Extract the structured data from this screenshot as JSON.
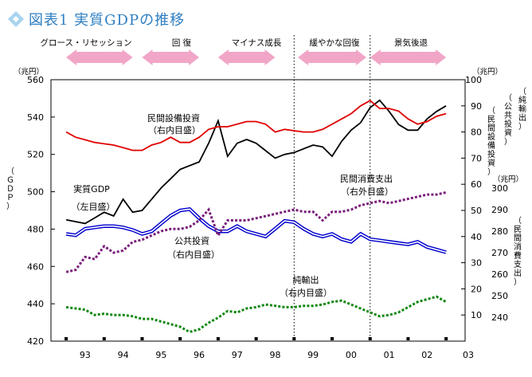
{
  "title": "図表1 実質GDPの推移",
  "phases": [
    {
      "label": "グロース・リセッション"
    },
    {
      "label": "回 復"
    },
    {
      "label": "マイナス成長"
    },
    {
      "label": "緩やかな回復"
    },
    {
      "label": "景気後退"
    }
  ],
  "axes": {
    "left_unit": "（兆円）",
    "left_title": "（ＧＤＰ）",
    "right_unit": "（兆円）",
    "right_title_1": "（民間設備投資）",
    "right_title_2": "（公共投資）",
    "right_title_3": "（純輸出）",
    "inner_unit": "（兆円）",
    "inner_title": "（民間消費支出）"
  },
  "annotations": {
    "gdp_1": "実質GDP",
    "gdp_2": "（左目盛）",
    "capex_1": "民間設備投資",
    "capex_2": "（右内目盛）",
    "consumption_1": "民間消費支出",
    "consumption_2": "（右外目盛）",
    "public_1": "公共投資",
    "public_2": "（右内目盛）",
    "netexports_1": "純輸出",
    "netexports_2": "（右内目盛）"
  },
  "colors": {
    "gdp": "#000000",
    "capex": "#e00000",
    "public": "#0000cc",
    "consumption": "#7b1e7b",
    "netexports": "#118811",
    "phase_arrow": "#f1a6c8",
    "title": "#2f7fc1"
  },
  "chart_data": {
    "type": "line",
    "x_ticks": [
      "93",
      "94",
      "95",
      "96",
      "97",
      "98",
      "99",
      "00",
      "01",
      "02",
      "03"
    ],
    "left_axis": {
      "ticks": [
        420,
        440,
        460,
        480,
        500,
        520,
        540,
        560
      ],
      "ylim": [
        420,
        560
      ]
    },
    "right_inner_axis": {
      "ticks": [
        10,
        20,
        30,
        40,
        50,
        60,
        70,
        80,
        90,
        100
      ],
      "ylim": [
        0,
        100
      ]
    },
    "right_outer_axis": {
      "ticks": [
        240,
        250,
        260,
        270,
        280,
        290,
        300
      ],
      "ylim": [
        240,
        300
      ]
    },
    "series": [
      {
        "name": "実質GDP",
        "axis": "left",
        "style": "solid-black",
        "x": [
          92.5,
          92.75,
          93.0,
          93.25,
          93.5,
          93.75,
          94.0,
          94.25,
          94.5,
          94.75,
          95.0,
          95.25,
          95.5,
          95.75,
          96.0,
          96.25,
          96.5,
          96.75,
          97.0,
          97.25,
          97.5,
          97.75,
          98.0,
          98.25,
          98.5,
          98.75,
          99.0,
          99.25,
          99.5,
          99.75,
          100.0,
          100.25,
          100.5,
          100.75,
          101.0,
          101.25,
          101.5,
          101.75,
          102.0,
          102.25,
          102.5
        ],
        "values": [
          485,
          484,
          483,
          486,
          489,
          487,
          496,
          489,
          490,
          496,
          502,
          507,
          512,
          514,
          516,
          526,
          538,
          519,
          526,
          528,
          526,
          522,
          518,
          520,
          521,
          523,
          525,
          524,
          519,
          527,
          533,
          537,
          545,
          549,
          543,
          536,
          533,
          533,
          539,
          543,
          546
        ]
      },
      {
        "name": "民間設備投資",
        "axis": "right_inner",
        "style": "solid-red",
        "x": [
          92.5,
          92.75,
          93.0,
          93.25,
          93.5,
          93.75,
          94.0,
          94.25,
          94.5,
          94.75,
          95.0,
          95.25,
          95.5,
          95.75,
          96.0,
          96.25,
          96.5,
          96.75,
          97.0,
          97.25,
          97.5,
          97.75,
          98.0,
          98.25,
          98.5,
          98.75,
          99.0,
          99.25,
          99.5,
          99.75,
          100.0,
          100.25,
          100.5,
          100.75,
          101.0,
          101.25,
          101.5,
          101.75,
          102.0,
          102.25,
          102.5
        ],
        "values": [
          80,
          78,
          77,
          76,
          75.5,
          75,
          74,
          73,
          73,
          75,
          76,
          78,
          76,
          76,
          78,
          81,
          82,
          82,
          83,
          84,
          84,
          83,
          80,
          81,
          80.5,
          80,
          80,
          81,
          83,
          85,
          87,
          90,
          92,
          89,
          89,
          88,
          85,
          83,
          84,
          86,
          87
        ]
      },
      {
        "name": "公共投資",
        "axis": "right_inner",
        "style": "double-blue",
        "x": [
          92.5,
          92.75,
          93.0,
          93.25,
          93.5,
          93.75,
          94.0,
          94.25,
          94.5,
          94.75,
          95.0,
          95.25,
          95.5,
          95.75,
          96.0,
          96.25,
          96.5,
          96.75,
          97.0,
          97.25,
          97.5,
          97.75,
          98.0,
          98.25,
          98.5,
          98.75,
          99.0,
          99.25,
          99.5,
          99.75,
          100.0,
          100.25,
          100.5,
          100.75,
          101.0,
          101.25,
          101.5,
          101.75,
          102.0,
          102.25,
          102.5
        ],
        "values": [
          41,
          40.5,
          43,
          43.5,
          44,
          44,
          43.5,
          42.5,
          41,
          42,
          45,
          48,
          50,
          50.5,
          47,
          44,
          42,
          42,
          44,
          42,
          41,
          40,
          43,
          46,
          45.5,
          43,
          41,
          40,
          41,
          39,
          38,
          41,
          39,
          38.5,
          38,
          37.5,
          37,
          38,
          36,
          35,
          34
        ]
      },
      {
        "name": "民間消費支出",
        "axis": "right_outer",
        "style": "dotted-purple",
        "x": [
          92.5,
          92.75,
          93.0,
          93.25,
          93.5,
          93.75,
          94.0,
          94.25,
          94.5,
          94.75,
          95.0,
          95.25,
          95.5,
          95.75,
          96.0,
          96.25,
          96.5,
          96.75,
          97.0,
          97.25,
          97.5,
          97.75,
          98.0,
          98.25,
          98.5,
          98.75,
          99.0,
          99.25,
          99.5,
          99.75,
          100.0,
          100.25,
          100.5,
          100.75,
          101.0,
          101.25,
          101.5,
          101.75,
          102.0,
          102.25,
          102.5
        ],
        "values": [
          261,
          262,
          268,
          267,
          273,
          270,
          271,
          275,
          276,
          278,
          280,
          281,
          281,
          282,
          285,
          290,
          278,
          285,
          285,
          285,
          286,
          287,
          288,
          289,
          290,
          289,
          289,
          285,
          289,
          289,
          290,
          292,
          293,
          294,
          293,
          294,
          295,
          296,
          297,
          297,
          298
        ]
      },
      {
        "name": "純輸出",
        "axis": "right_inner",
        "style": "dotted-green",
        "x": [
          92.5,
          92.75,
          93.0,
          93.25,
          93.5,
          93.75,
          94.0,
          94.25,
          94.5,
          94.75,
          95.0,
          95.25,
          95.5,
          95.75,
          96.0,
          96.25,
          96.5,
          96.75,
          97.0,
          97.25,
          97.5,
          97.75,
          98.0,
          98.25,
          98.5,
          98.75,
          99.0,
          99.25,
          99.5,
          99.75,
          100.0,
          100.25,
          100.5,
          100.75,
          101.0,
          101.25,
          101.5,
          101.75,
          102.0,
          102.25,
          102.5
        ],
        "values": [
          13,
          12.5,
          12,
          10,
          10.5,
          10,
          10,
          9.5,
          8.5,
          8.5,
          7.5,
          6.5,
          5.5,
          3.5,
          4.5,
          7,
          9,
          11.5,
          11,
          12.5,
          13,
          14,
          13.5,
          13,
          13,
          13.5,
          13.5,
          14,
          15,
          15.5,
          14,
          12.5,
          11,
          9.5,
          10,
          11,
          13,
          15,
          16,
          17,
          15
        ]
      }
    ],
    "period_markers": [
      98.5,
      100.5
    ],
    "phase_spans": [
      [
        92.5,
        94.25
      ],
      [
        94.5,
        96.0
      ],
      [
        96.5,
        98.0
      ],
      [
        98.6,
        100.4
      ],
      [
        100.5,
        102.5
      ]
    ]
  }
}
